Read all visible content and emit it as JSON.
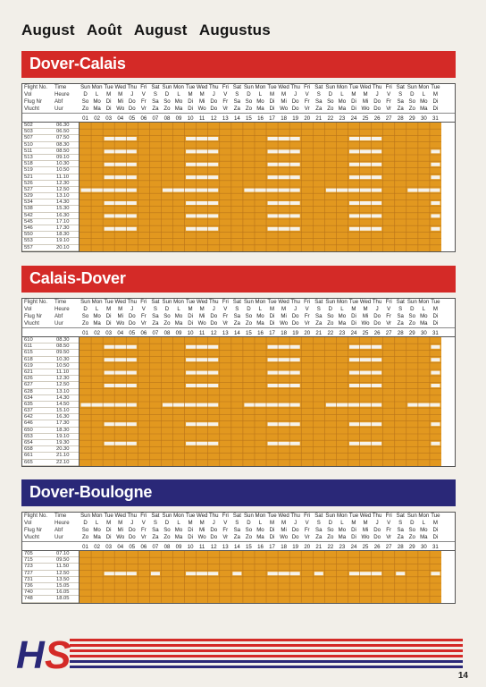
{
  "page": {
    "title_words": [
      "August",
      "Août",
      "August",
      "Augustus"
    ],
    "page_number": "14",
    "logo_text": "HS"
  },
  "header_labels": {
    "row1": [
      "Flight No.",
      "Time"
    ],
    "row2": [
      "Vol",
      "Heure"
    ],
    "row3": [
      "Flug Nr",
      "Abf"
    ],
    "row4": [
      "Vlucht",
      "Uur"
    ]
  },
  "weekdays": {
    "en": [
      "Sun",
      "Mon",
      "Tue",
      "Wed",
      "Thu",
      "Fri",
      "Sat",
      "Sun",
      "Mon",
      "Tue",
      "Wed",
      "Thu",
      "Fri",
      "Sat",
      "Sun",
      "Mon",
      "Tue",
      "Wed",
      "Thu",
      "Fri",
      "Sat",
      "Sun",
      "Mon",
      "Tue",
      "Wed",
      "Thu",
      "Fri",
      "Sat",
      "Sun",
      "Mon",
      "Tue"
    ],
    "fr": [
      "D",
      "L",
      "M",
      "M",
      "J",
      "V",
      "S",
      "D",
      "L",
      "M",
      "M",
      "J",
      "V",
      "S",
      "D",
      "L",
      "M",
      "M",
      "J",
      "V",
      "S",
      "D",
      "L",
      "M",
      "M",
      "J",
      "V",
      "S",
      "D",
      "L",
      "M"
    ],
    "de": [
      "So",
      "Mo",
      "Di",
      "Mi",
      "Do",
      "Fr",
      "Sa",
      "So",
      "Mo",
      "Di",
      "Mi",
      "Do",
      "Fr",
      "Sa",
      "So",
      "Mo",
      "Di",
      "Mi",
      "Do",
      "Fr",
      "Sa",
      "So",
      "Mo",
      "Di",
      "Mi",
      "Do",
      "Fr",
      "Sa",
      "So",
      "Mo",
      "Di"
    ],
    "nl": [
      "Zo",
      "Ma",
      "Di",
      "Wo",
      "Do",
      "Vr",
      "Za",
      "Zo",
      "Ma",
      "Di",
      "Wo",
      "Do",
      "Vr",
      "Za",
      "Zo",
      "Ma",
      "Di",
      "Wo",
      "Do",
      "Vr",
      "Za",
      "Zo",
      "Ma",
      "Di",
      "Wo",
      "Do",
      "Vr",
      "Za",
      "Zo",
      "Ma",
      "Di"
    ]
  },
  "dates": [
    "01",
    "02",
    "03",
    "04",
    "05",
    "06",
    "07",
    "08",
    "09",
    "10",
    "11",
    "12",
    "13",
    "14",
    "15",
    "16",
    "17",
    "18",
    "19",
    "20",
    "21",
    "22",
    "23",
    "24",
    "25",
    "26",
    "27",
    "28",
    "29",
    "30",
    "31"
  ],
  "colors": {
    "red_band": "#d42a27",
    "blue_band": "#2a2878",
    "grid_orange": "#e2981f",
    "no_service": "#f6f3ec"
  },
  "routes": [
    {
      "name": "Dover-Calais",
      "band_color": "red",
      "flights": [
        {
          "no": "502",
          "time": "06.30",
          "gaps": []
        },
        {
          "no": "503",
          "time": "06.50",
          "gaps": []
        },
        {
          "no": "507",
          "time": "07.50",
          "gaps": [
            3,
            4,
            5,
            10,
            11,
            12,
            17,
            18,
            19,
            24,
            25,
            26
          ]
        },
        {
          "no": "510",
          "time": "08.30",
          "gaps": []
        },
        {
          "no": "511",
          "time": "08.50",
          "gaps": [
            3,
            4,
            5,
            10,
            11,
            12,
            17,
            18,
            19,
            24,
            25,
            26,
            31
          ]
        },
        {
          "no": "513",
          "time": "09.10",
          "gaps": []
        },
        {
          "no": "518",
          "time": "10.30",
          "gaps": [
            3,
            4,
            5,
            10,
            11,
            12,
            17,
            18,
            19,
            24,
            25,
            26,
            31
          ]
        },
        {
          "no": "519",
          "time": "10.50",
          "gaps": []
        },
        {
          "no": "521",
          "time": "11.10",
          "gaps": [
            3,
            4,
            5,
            10,
            11,
            12,
            17,
            18,
            19,
            24,
            25,
            26,
            31
          ]
        },
        {
          "no": "526",
          "time": "12.30",
          "gaps": []
        },
        {
          "no": "527",
          "time": "12.50",
          "gaps": [
            1,
            2,
            3,
            4,
            5,
            8,
            9,
            10,
            11,
            12,
            15,
            16,
            17,
            18,
            19,
            22,
            23,
            24,
            25,
            26,
            29,
            30,
            31
          ]
        },
        {
          "no": "529",
          "time": "13.10",
          "gaps": []
        },
        {
          "no": "534",
          "time": "14.30",
          "gaps": [
            3,
            4,
            5,
            10,
            11,
            12,
            17,
            18,
            19,
            24,
            25,
            26,
            31
          ]
        },
        {
          "no": "538",
          "time": "15.30",
          "gaps": []
        },
        {
          "no": "542",
          "time": "16.30",
          "gaps": [
            3,
            4,
            5,
            10,
            11,
            12,
            17,
            18,
            19,
            24,
            25,
            26,
            31
          ]
        },
        {
          "no": "545",
          "time": "17.10",
          "gaps": []
        },
        {
          "no": "546",
          "time": "17.30",
          "gaps": [
            3,
            4,
            5,
            10,
            11,
            12,
            17,
            18,
            19,
            24,
            25,
            26,
            31
          ]
        },
        {
          "no": "550",
          "time": "18.30",
          "gaps": []
        },
        {
          "no": "553",
          "time": "19.10",
          "gaps": []
        },
        {
          "no": "557",
          "time": "20.10",
          "gaps": []
        }
      ]
    },
    {
      "name": "Calais-Dover",
      "band_color": "red",
      "flights": [
        {
          "no": "610",
          "time": "08.30",
          "gaps": []
        },
        {
          "no": "611",
          "time": "08.50",
          "gaps": [
            3,
            4,
            5,
            10,
            11,
            12,
            17,
            18,
            19,
            24,
            25,
            26,
            31
          ]
        },
        {
          "no": "615",
          "time": "09.50",
          "gaps": []
        },
        {
          "no": "618",
          "time": "10.30",
          "gaps": [
            3,
            4,
            5,
            10,
            11,
            12,
            17,
            18,
            19,
            24,
            25,
            26,
            31
          ]
        },
        {
          "no": "619",
          "time": "10.50",
          "gaps": []
        },
        {
          "no": "621",
          "time": "11.10",
          "gaps": [
            3,
            4,
            5,
            10,
            11,
            12,
            17,
            18,
            19,
            24,
            25,
            26,
            31
          ]
        },
        {
          "no": "626",
          "time": "12.30",
          "gaps": []
        },
        {
          "no": "627",
          "time": "12.50",
          "gaps": [
            3,
            4,
            5,
            10,
            11,
            12,
            17,
            18,
            19,
            24,
            25,
            26,
            31
          ]
        },
        {
          "no": "628",
          "time": "13.10",
          "gaps": []
        },
        {
          "no": "634",
          "time": "14.30",
          "gaps": []
        },
        {
          "no": "635",
          "time": "14.50",
          "gaps": [
            1,
            2,
            3,
            4,
            5,
            8,
            9,
            10,
            11,
            12,
            15,
            16,
            17,
            18,
            19,
            22,
            23,
            24,
            25,
            26,
            29,
            30,
            31
          ]
        },
        {
          "no": "637",
          "time": "15.10",
          "gaps": []
        },
        {
          "no": "642",
          "time": "16.30",
          "gaps": []
        },
        {
          "no": "646",
          "time": "17.30",
          "gaps": [
            3,
            4,
            5,
            10,
            11,
            12,
            17,
            18,
            19,
            24,
            25,
            26,
            31
          ]
        },
        {
          "no": "650",
          "time": "18.30",
          "gaps": []
        },
        {
          "no": "653",
          "time": "19.10",
          "gaps": []
        },
        {
          "no": "654",
          "time": "19.30",
          "gaps": [
            3,
            4,
            5,
            10,
            11,
            12,
            17,
            18,
            19,
            24,
            25,
            26,
            31
          ]
        },
        {
          "no": "658",
          "time": "20.30",
          "gaps": []
        },
        {
          "no": "661",
          "time": "21.10",
          "gaps": []
        },
        {
          "no": "665",
          "time": "22.10",
          "gaps": []
        }
      ]
    },
    {
      "name": "Dover-Boulogne",
      "band_color": "blue",
      "flights": [
        {
          "no": "705",
          "time": "07.10",
          "gaps": []
        },
        {
          "no": "715",
          "time": "09.50",
          "gaps": []
        },
        {
          "no": "723",
          "time": "11.50",
          "gaps": []
        },
        {
          "no": "727",
          "time": "12.50",
          "gaps": [
            3,
            4,
            5,
            7,
            10,
            11,
            12,
            14,
            17,
            18,
            19,
            21,
            24,
            25,
            26,
            28,
            31
          ]
        },
        {
          "no": "731",
          "time": "13.50",
          "gaps": []
        },
        {
          "no": "736",
          "time": "15.05",
          "gaps": []
        },
        {
          "no": "740",
          "time": "16.05",
          "gaps": []
        },
        {
          "no": "748",
          "time": "18.05",
          "gaps": []
        }
      ]
    }
  ]
}
